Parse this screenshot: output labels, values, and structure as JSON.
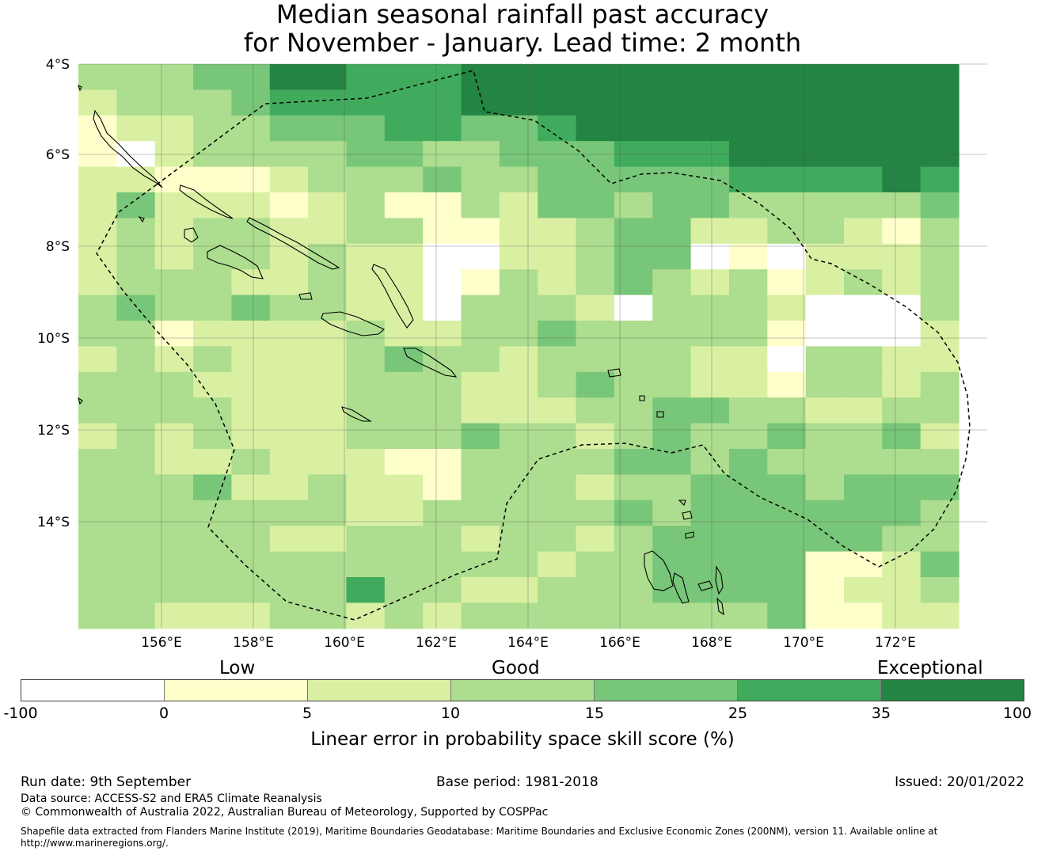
{
  "title": {
    "line1": "Median seasonal rainfall past accuracy",
    "line2": "for November - January. Lead time: 2 month"
  },
  "map": {
    "lat_labels": [
      "4°S",
      "6°S",
      "8°S",
      "10°S",
      "12°S",
      "14°S"
    ],
    "lon_labels": [
      "156°E",
      "158°E",
      "160°E",
      "162°E",
      "164°E",
      "166°E",
      "168°E",
      "170°E",
      "172°E"
    ],
    "grid": [
      "33344665556666666666666",
      "23334555556666666666666",
      "12233444554456666666666",
      "1?233334433444555666666",
      "22111233343344444555565",
      "24222123113244344333334",
      "23233223311223442233213",
      "23233232200223440102223",
      "23332232201323432312323",
      "34334332203332033320003",
      "33122223223343333310002",
      "23232223433233332203322",
      "33322223332234332213323",
      "33332223332223344332233",
      "23232223334332343343342",
      "33223222113333443433333",
      "33342232213332334443444",
      "33333332233333434444443",
      "33333223332332344444433",
      "33333333333323344441124",
      "33333335332233344441223",
      "33222332323333333341122"
    ],
    "palette": [
      "#ffffff",
      "#ffffcc",
      "#d9f0a3",
      "#addd8e",
      "#78c679",
      "#41ab5d",
      "#238443"
    ]
  },
  "legend": {
    "categories": [
      "Low",
      "Good",
      "Exceptional"
    ],
    "ticks": [
      "-100",
      "0",
      "5",
      "10",
      "15",
      "25",
      "35",
      "100"
    ],
    "colors": [
      "#ffffff",
      "#ffffcc",
      "#d9f0a3",
      "#addd8e",
      "#78c679",
      "#41ab5d",
      "#238443"
    ],
    "title": "Linear error in probability space skill score (%)"
  },
  "footer": {
    "run_date": "Run date: 9th September",
    "base_period": "Base period: 1981-2018",
    "issued": "Issued: 20/01/2022",
    "data_source": "Data source: ACCESS-S2 and ERA5 Climate Reanalysis",
    "copyright": "© Commonwealth of Australia 2022, Australian Bureau of Meteorology, Supported by COSPPac",
    "shapefile_line1": "Shapefile data extracted from Flanders Marine Institute (2019), Maritime Boundaries Geodatabase: Maritime Boundaries and Exclusive Economic Zones (200NM), version 11. Available online at",
    "shapefile_line2": "http://www.marineregions.org/."
  }
}
